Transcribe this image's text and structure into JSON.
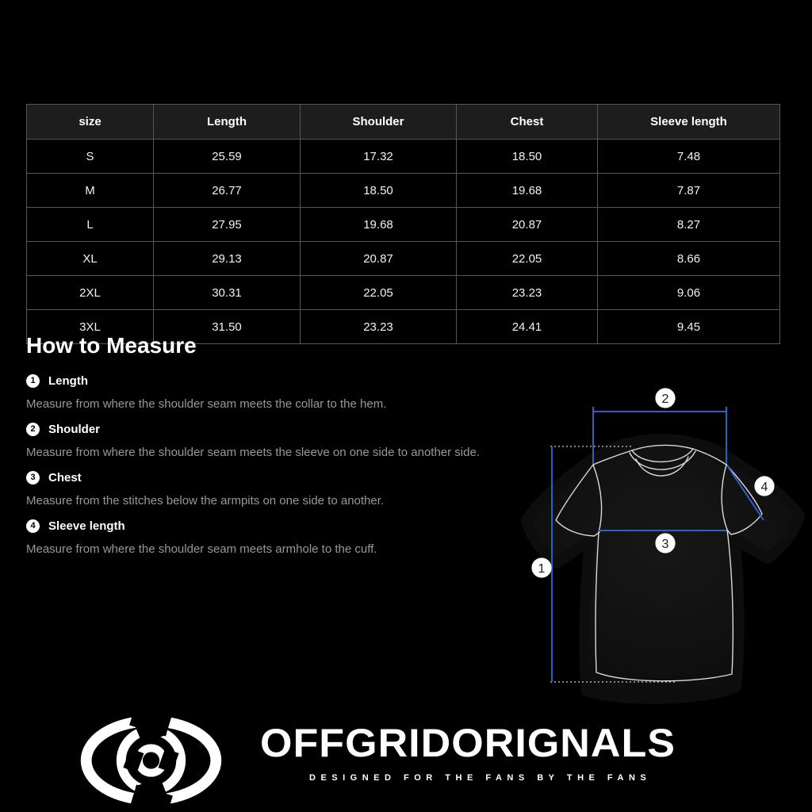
{
  "page": {
    "background": "#000000"
  },
  "size_table": {
    "columns": [
      "size",
      "Length",
      "Shoulder",
      "Chest",
      "Sleeve length"
    ],
    "rows": [
      {
        "cells": [
          "S",
          "25.59",
          "17.32",
          "18.50",
          "7.48"
        ]
      },
      {
        "cells": [
          "M",
          "26.77",
          "18.50",
          "19.68",
          "7.87"
        ]
      },
      {
        "cells": [
          "L",
          "27.95",
          "19.68",
          "20.87",
          "8.27"
        ]
      },
      {
        "cells": [
          "XL",
          "29.13",
          "20.87",
          "22.05",
          "8.66"
        ]
      },
      {
        "cells": [
          "2XL",
          "30.31",
          "22.05",
          "23.23",
          "9.06"
        ]
      },
      {
        "cells": [
          "3XL",
          "31.50",
          "23.23",
          "24.41",
          "9.45"
        ]
      }
    ]
  },
  "how_to_measure": {
    "title": "How to Measure",
    "items": [
      {
        "num": "1",
        "label": "Length",
        "desc": "Measure from where the shoulder seam meets the collar to the hem."
      },
      {
        "num": "2",
        "label": "Shoulder",
        "desc": "Measure from where the shoulder seam meets the sleeve on one side to another side."
      },
      {
        "num": "3",
        "label": "Chest",
        "desc": "Measure from the stitches below the armpits on one side to another."
      },
      {
        "num": "4",
        "label": "Sleeve length",
        "desc": "Measure from where the shoulder seam meets armhole to the cuff."
      }
    ]
  },
  "diagram": {
    "badges": [
      "1",
      "2",
      "3",
      "4"
    ],
    "measure_line_color": "#2a62c4",
    "outline_color": "#d9d9d9"
  },
  "footer": {
    "brand": "OFFGRIDORIGNALS",
    "tagline": "DESIGNED FOR THE FANS BY THE FANS",
    "logo_icon": "shutter-eye-logo"
  },
  "colors": {
    "background": "#000000",
    "table_header_bg": "#1d1d1d",
    "table_border": "#565656",
    "text_primary": "#ffffff",
    "text_secondary": "#989898",
    "measure_line": "#2a62c4"
  }
}
